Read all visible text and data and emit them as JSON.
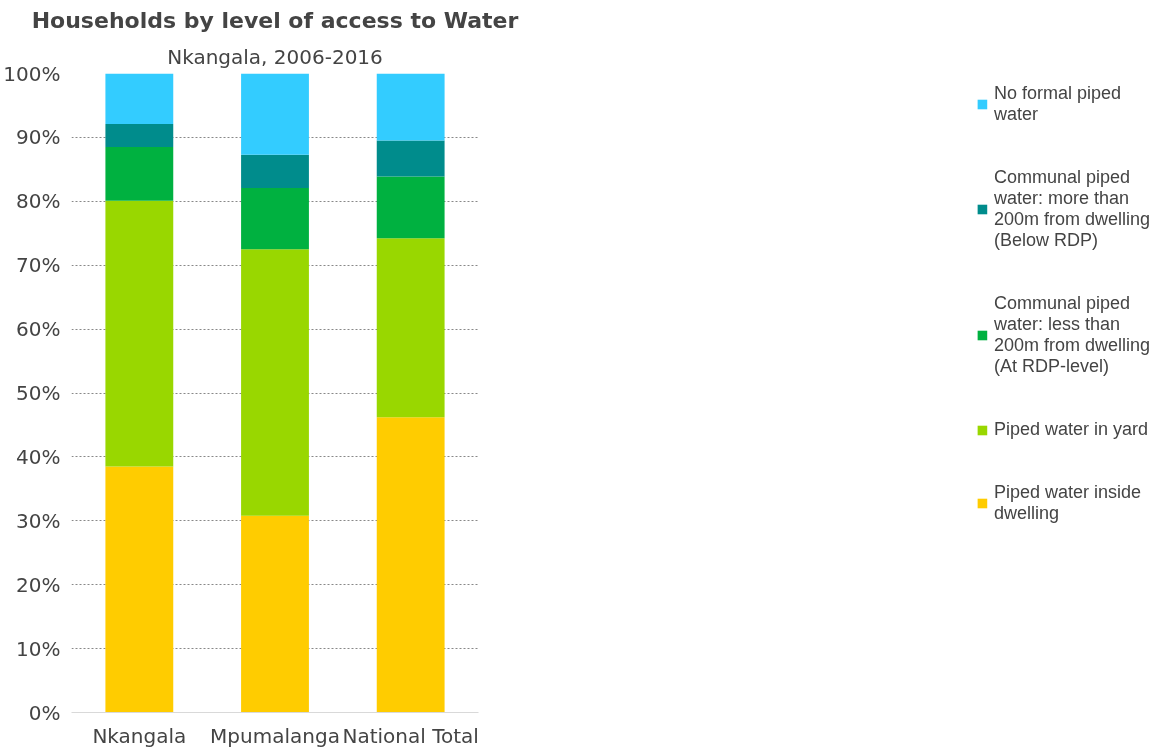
{
  "chart_data": {
    "type": "bar",
    "stacked": true,
    "title": "Households by level of access to Water",
    "subtitle": "Nkangala, 2006-2016",
    "categories": [
      "Nkangala",
      "Mpumalanga",
      "National Total"
    ],
    "series": [
      {
        "name": "Piped water inside dwelling",
        "color": "#ffcc00",
        "values": [
          38.5,
          30.8,
          46.2
        ]
      },
      {
        "name": "Piped water in yard",
        "color": "#99d700",
        "values": [
          41.6,
          41.7,
          28.0
        ]
      },
      {
        "name": "Communal piped water: less than 200m from dwelling (At RDP-level)",
        "color": "#00b140",
        "values": [
          8.4,
          9.6,
          9.7
        ]
      },
      {
        "name": "Communal piped water: more than 200m from dwelling (Below RDP)",
        "color": "#008c8c",
        "values": [
          3.6,
          5.2,
          5.6
        ]
      },
      {
        "name": "No formal piped water",
        "color": "#33ccff",
        "values": [
          7.9,
          12.7,
          10.5
        ]
      }
    ],
    "ylim": [
      0,
      100
    ],
    "yticks": [
      {
        "value": 0,
        "label": "0%"
      },
      {
        "value": 10,
        "label": "10%"
      },
      {
        "value": 20,
        "label": "20%"
      },
      {
        "value": 30,
        "label": "30%"
      },
      {
        "value": 40,
        "label": "40%"
      },
      {
        "value": 50,
        "label": "50%"
      },
      {
        "value": 60,
        "label": "60%"
      },
      {
        "value": 70,
        "label": "70%"
      },
      {
        "value": 80,
        "label": "80%"
      },
      {
        "value": 90,
        "label": "90%"
      },
      {
        "value": 100,
        "label": "100%"
      }
    ],
    "grid": "y",
    "legend": "right"
  }
}
